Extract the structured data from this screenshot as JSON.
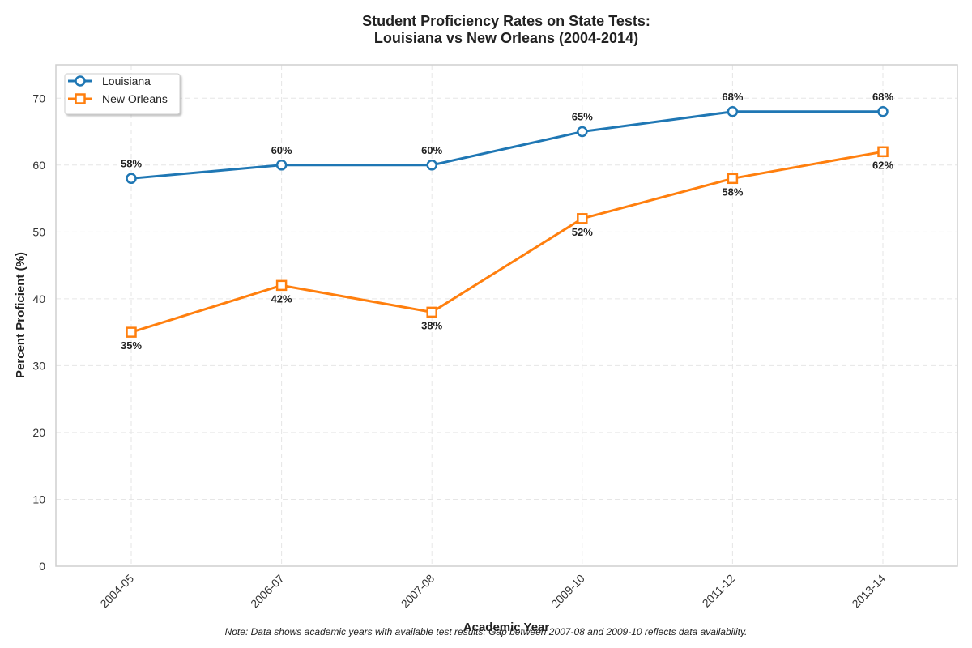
{
  "chart_data": {
    "type": "line",
    "title": "Student Proficiency Rates on State Tests:",
    "subtitle": "Louisiana vs New Orleans (2004-2014)",
    "xlabel": "Academic Year",
    "ylabel": "Percent Proficient (%)",
    "categories": [
      "2004-05",
      "2006-07",
      "2007-08",
      "2009-10",
      "2011-12",
      "2013-14"
    ],
    "ylim": [
      0,
      75
    ],
    "yticks": [
      0,
      10,
      20,
      30,
      40,
      50,
      60,
      70
    ],
    "grid": true,
    "legend_position": "top-left",
    "series": [
      {
        "name": "Louisiana",
        "marker": "circle",
        "color": "#1f77b4",
        "values": [
          58,
          60,
          60,
          65,
          68,
          68
        ],
        "labels": [
          "58%",
          "60%",
          "60%",
          "65%",
          "68%",
          "68%"
        ],
        "label_position": "above"
      },
      {
        "name": "New Orleans",
        "marker": "square",
        "color": "#ff7f0e",
        "values": [
          35,
          42,
          38,
          52,
          58,
          62
        ],
        "labels": [
          "35%",
          "42%",
          "38%",
          "52%",
          "58%",
          "62%"
        ],
        "label_position": "below"
      }
    ],
    "note": "Note: Data shows academic years with available test results. Gap between 2007-08 and 2009-10 reflects data availability."
  }
}
